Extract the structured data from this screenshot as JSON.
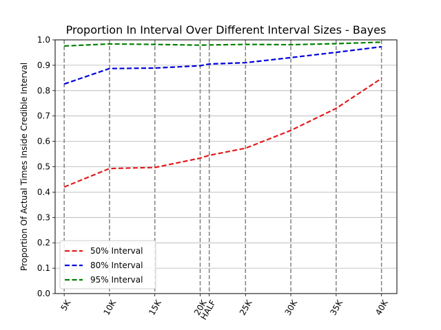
{
  "chart_data": {
    "type": "line",
    "title": "Proportion In Interval Over Different Interval Sizes - Bayes",
    "xlabel": "",
    "ylabel": "Proportion Of Actual Times Inside Credible Interval",
    "x_positions": [
      5,
      10,
      15,
      20,
      21,
      25,
      30,
      35,
      40
    ],
    "categories": [
      "5K",
      "10K",
      "15K",
      "20K",
      "HALF",
      "25K",
      "30K",
      "35K",
      "40K"
    ],
    "xlim": [
      4.0,
      41.7
    ],
    "ylim": [
      0.0,
      1.0
    ],
    "yticks": [
      "0.0",
      "0.1",
      "0.2",
      "0.3",
      "0.4",
      "0.5",
      "0.6",
      "0.7",
      "0.8",
      "0.9",
      "1.0"
    ],
    "ytick_values": [
      0.0,
      0.1,
      0.2,
      0.3,
      0.4,
      0.5,
      0.6,
      0.7,
      0.8,
      0.9,
      1.0
    ],
    "grid": "horizontal",
    "vertical_markers": "dashed gray at each x position",
    "legend_position": "lower-left",
    "series": [
      {
        "name": "50% Interval",
        "color": "#e41a1c",
        "values": [
          0.42,
          0.493,
          0.497,
          0.534,
          0.545,
          0.573,
          0.643,
          0.73,
          0.848
        ]
      },
      {
        "name": "80% Interval",
        "color": "#0000dd",
        "values": [
          0.826,
          0.887,
          0.889,
          0.898,
          0.905,
          0.91,
          0.93,
          0.951,
          0.973
        ]
      },
      {
        "name": "95% Interval",
        "color": "#008000",
        "values": [
          0.976,
          0.984,
          0.982,
          0.979,
          0.98,
          0.982,
          0.981,
          0.985,
          0.991
        ]
      }
    ]
  }
}
